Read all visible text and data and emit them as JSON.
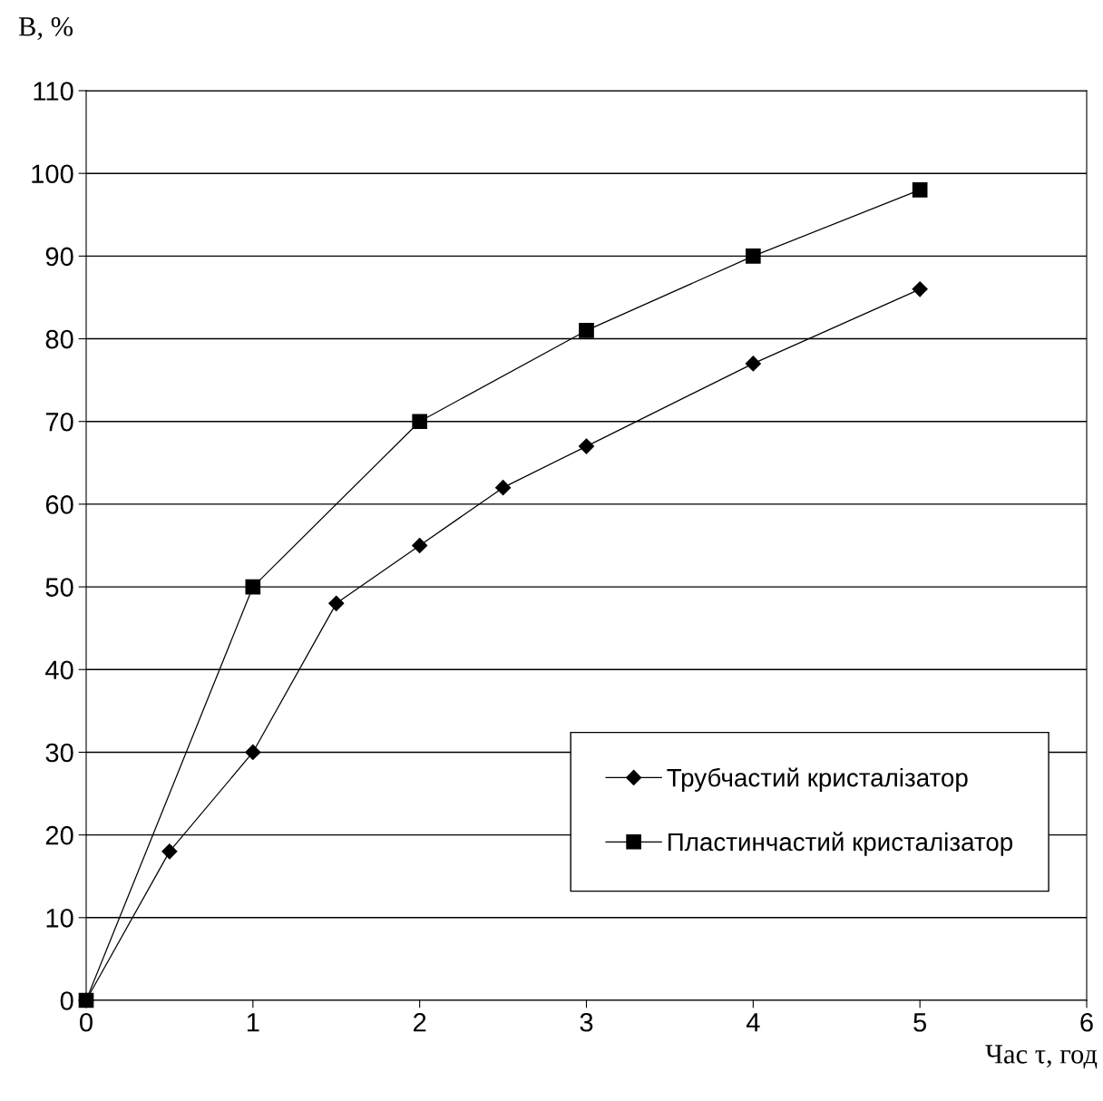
{
  "chart_data": {
    "type": "line",
    "xlabel": "Час τ, год",
    "ylabel": "В, %",
    "xlim": [
      0,
      6
    ],
    "xticks": [
      0,
      1,
      2,
      3,
      4,
      5,
      6
    ],
    "ylim": [
      0,
      110
    ],
    "yticks": [
      0,
      10,
      20,
      30,
      40,
      50,
      60,
      70,
      80,
      90,
      100,
      110
    ],
    "grid": "y",
    "legend": "lower right",
    "series": [
      {
        "name": "Трубчастий кристалізатор",
        "color": "#000000",
        "marker": "diamond",
        "x": [
          0,
          0.5,
          1,
          1.5,
          2,
          2.5,
          3,
          4,
          5
        ],
        "values": [
          0,
          18,
          30,
          48,
          55,
          62,
          67,
          77,
          86
        ]
      },
      {
        "name": "Пластинчастий кристалізатор",
        "color": "#000000",
        "marker": "square",
        "x": [
          0,
          1,
          2,
          3,
          4,
          5
        ],
        "values": [
          0,
          50,
          70,
          81,
          90,
          98
        ]
      }
    ]
  }
}
